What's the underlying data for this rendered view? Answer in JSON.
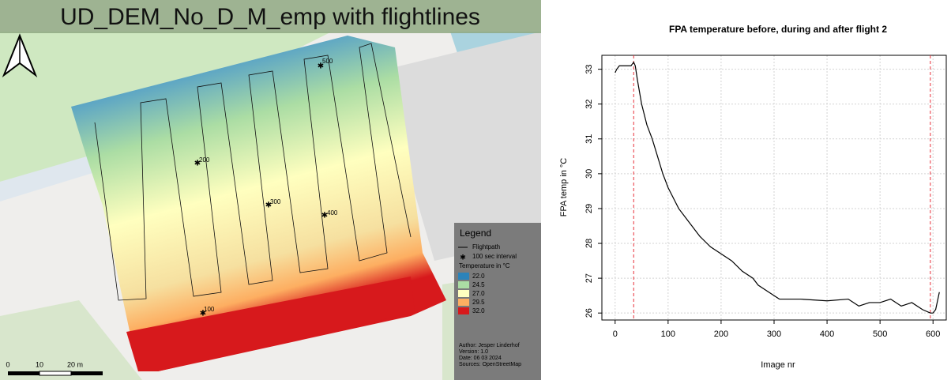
{
  "map": {
    "title": "UD_DEM_No_D_M_emp with flightlines",
    "interval_labels": [
      "100",
      "200",
      "300",
      "400",
      "500"
    ],
    "legend": {
      "title": "Legend",
      "flightpath": "Flightpath",
      "interval": "100 sec interval",
      "temperature_title": "Temperature in °C",
      "items": [
        {
          "label": "22.0",
          "color": "#2b83ba"
        },
        {
          "label": "24.5",
          "color": "#abdda4"
        },
        {
          "label": "27.0",
          "color": "#ffffbf"
        },
        {
          "label": "29.5",
          "color": "#fdae61"
        },
        {
          "label": "32.0",
          "color": "#d7191c"
        }
      ],
      "credits": [
        "Author: Jesper Linderhof",
        "Version: 1.0",
        "Date: 06 03 2024",
        "Sources: OpenStreetMap"
      ]
    },
    "scale_labels": [
      "0",
      "10",
      "20 m"
    ]
  },
  "chart_data": {
    "type": "line",
    "title": "FPA temperature before, during and after flight 2",
    "x_label": "Image nr",
    "y_label": "FPA temp in °C",
    "x": [
      0,
      3,
      8,
      30,
      35,
      38,
      42,
      50,
      60,
      70,
      80,
      90,
      100,
      120,
      140,
      160,
      180,
      200,
      220,
      240,
      260,
      270,
      290,
      310,
      350,
      400,
      440,
      460,
      480,
      500,
      520,
      540,
      560,
      580,
      595,
      600,
      605,
      612
    ],
    "values": [
      32.9,
      33.0,
      33.1,
      33.1,
      33.2,
      33.1,
      32.7,
      32.0,
      31.4,
      31.0,
      30.5,
      30.0,
      29.6,
      29.0,
      28.6,
      28.2,
      27.9,
      27.7,
      27.5,
      27.2,
      27.0,
      26.8,
      26.6,
      26.4,
      26.4,
      26.35,
      26.4,
      26.2,
      26.3,
      26.3,
      26.4,
      26.2,
      26.3,
      26.1,
      26.0,
      26.0,
      26.1,
      26.6
    ],
    "color": "#000000",
    "vlines": [
      35,
      595
    ],
    "vline_color": "#e8303a",
    "xlim": [
      -25,
      625
    ],
    "ylim": [
      25.8,
      33.4
    ],
    "xticks": [
      0,
      100,
      200,
      300,
      400,
      500,
      600
    ],
    "yticks": [
      26,
      27,
      28,
      29,
      30,
      31,
      32,
      33
    ],
    "grid": true
  }
}
